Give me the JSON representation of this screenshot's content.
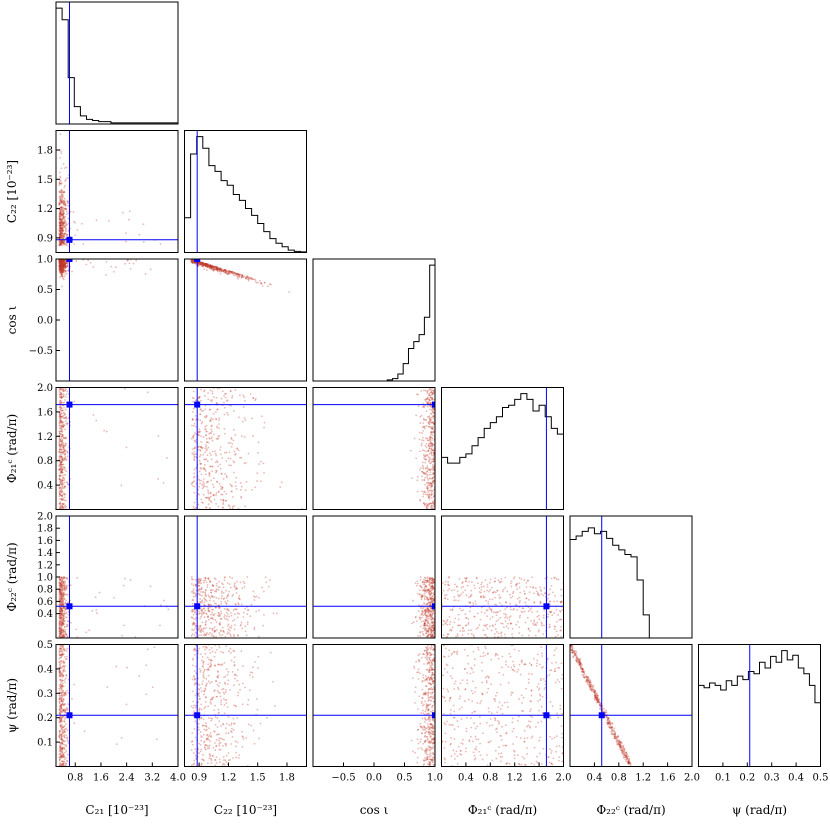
{
  "chart_data": {
    "type": "corner",
    "parameters": [
      {
        "key": "C21",
        "label": "C₂₁ [10⁻²³]",
        "range": [
          0.2,
          4.0
        ],
        "ticks": [
          0.8,
          1.6,
          2.4,
          3.2,
          4.0
        ],
        "tick_labels": [
          "0.8",
          "1.6",
          "2.4",
          "3.2",
          "4.0"
        ],
        "truth": 0.62
      },
      {
        "key": "C22",
        "label": "C₂₂ [10⁻²³]",
        "range": [
          0.75,
          2.0
        ],
        "ticks": [
          0.9,
          1.2,
          1.5,
          1.8
        ],
        "tick_labels": [
          "0.9",
          "1.2",
          "1.5",
          "1.8"
        ],
        "truth": 0.88
      },
      {
        "key": "cosi",
        "label": "cos ι",
        "range": [
          -1.0,
          1.0
        ],
        "ticks": [
          -0.5,
          0.0,
          0.5,
          1.0
        ],
        "tick_labels": [
          "−0.5",
          "0.0",
          "0.5",
          "1.0"
        ],
        "truth": 1.0
      },
      {
        "key": "phi21",
        "label": "Φ₂₁ᶜ (rad/π)",
        "range": [
          0.0,
          2.0
        ],
        "ticks": [
          0.4,
          0.8,
          1.2,
          1.6,
          2.0
        ],
        "tick_labels": [
          "0.4",
          "0.8",
          "1.2",
          "1.6",
          "2.0"
        ],
        "y_ticks": [
          0.4,
          0.8,
          1.2,
          1.6,
          2.0
        ],
        "y_tick_labels": [
          "0.4",
          "0.8",
          "1.2",
          "1.6",
          "2.0"
        ],
        "truth": 1.72
      },
      {
        "key": "phi22",
        "label": "Φ₂₂ᶜ (rad/π)",
        "range": [
          0.0,
          2.0
        ],
        "ticks": [
          0.4,
          0.8,
          1.2,
          1.6,
          2.0
        ],
        "tick_labels": [
          "0.4",
          "0.8",
          "1.2",
          "1.6",
          "2.0"
        ],
        "y_ticks": [
          0.4,
          0.6,
          0.8,
          1.0,
          1.2,
          1.4,
          1.6,
          1.8,
          2.0
        ],
        "y_tick_labels": [
          "0.4",
          "0.6",
          "0.8",
          "1.0",
          "1.2",
          "1.4",
          "1.6",
          "1.8",
          "2.0"
        ],
        "truth": 0.52
      },
      {
        "key": "psi",
        "label": "ψ (rad/π)",
        "range": [
          0.0,
          0.5
        ],
        "ticks": [
          0.1,
          0.2,
          0.3,
          0.4,
          0.5
        ],
        "tick_labels": [
          "0.1",
          "0.2",
          "0.3",
          "0.4",
          "0.5"
        ],
        "truth": 0.21
      }
    ],
    "histograms": {
      "C21": [
        1.0,
        0.9,
        0.4,
        0.15,
        0.07,
        0.04,
        0.03,
        0.02,
        0.02,
        0.01,
        0.01,
        0.01,
        0.01,
        0.01,
        0.01,
        0.01,
        0.01,
        0.01,
        0.01,
        0.01
      ],
      "C22": [
        0.3,
        0.85,
        1.0,
        0.9,
        0.75,
        0.7,
        0.62,
        0.58,
        0.5,
        0.45,
        0.38,
        0.32,
        0.25,
        0.18,
        0.12,
        0.08,
        0.05,
        0.02,
        0.01,
        0.005
      ],
      "cosi": [
        0,
        0,
        0,
        0,
        0,
        0,
        0,
        0,
        0,
        0,
        0,
        0,
        0,
        0,
        0.01,
        0.02,
        0.06,
        0.15,
        0.28,
        0.34,
        0.4,
        0.55,
        1.0
      ],
      "phi21": [
        0.45,
        0.4,
        0.4,
        0.45,
        0.48,
        0.55,
        0.62,
        0.7,
        0.75,
        0.8,
        0.88,
        0.9,
        0.95,
        1.0,
        0.95,
        0.85,
        0.9,
        0.8,
        0.7,
        0.65
      ],
      "phi22": [
        0.85,
        0.88,
        0.92,
        0.95,
        0.9,
        0.92,
        0.86,
        0.8,
        0.76,
        0.72,
        0.7,
        0.5,
        0.2,
        0,
        0,
        0,
        0,
        0,
        0,
        0
      ],
      "psi": [
        0.7,
        0.68,
        0.72,
        0.7,
        0.66,
        0.74,
        0.7,
        0.78,
        0.75,
        0.82,
        0.8,
        0.9,
        0.85,
        0.95,
        0.9,
        1.0,
        0.92,
        0.96,
        0.85,
        0.8,
        0.7,
        0.55
      ]
    },
    "scatter_color": "#c0392b",
    "contour_color": "#000000",
    "truth_color": "#0000ff"
  }
}
